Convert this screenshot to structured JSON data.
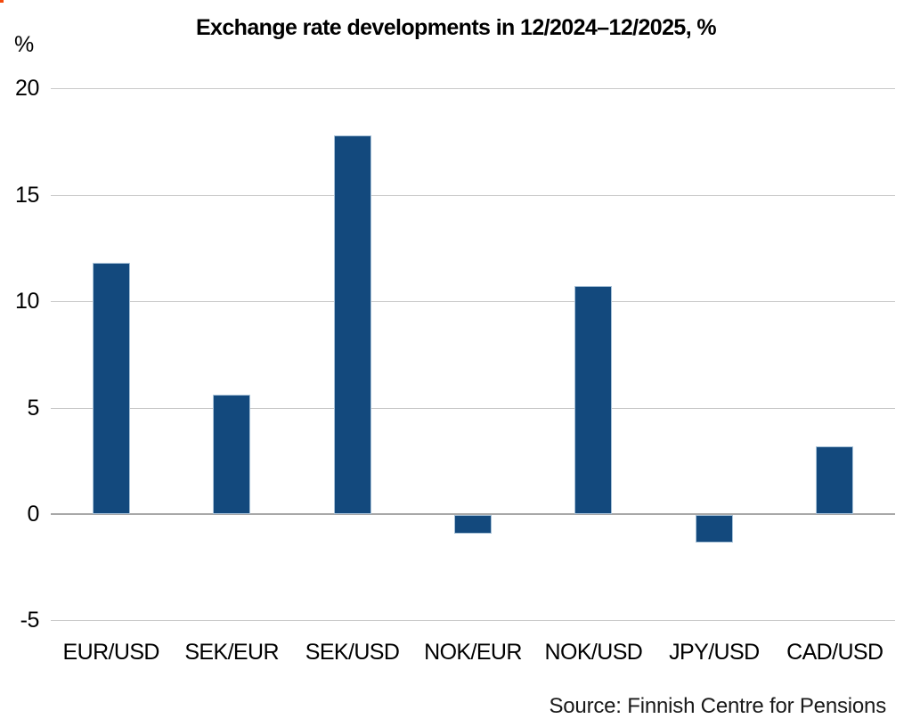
{
  "chart_data": {
    "type": "bar",
    "title": "Exchange rate developments in 12/2024–12/2025, %",
    "ylabel": "%",
    "categories": [
      "EUR/USD",
      "SEK/EUR",
      "SEK/USD",
      "NOK/EUR",
      "NOK/USD",
      "JPY/USD",
      "CAD/USD"
    ],
    "values": [
      11.8,
      5.6,
      17.8,
      -0.9,
      10.7,
      -1.3,
      3.2
    ],
    "ylim": [
      -5,
      20
    ],
    "yticks": [
      20,
      15,
      10,
      5,
      0,
      -5
    ],
    "grid": true,
    "legend": "none",
    "bar_color": "#13497d",
    "source": "Source: Finnish Centre for Pensions"
  }
}
